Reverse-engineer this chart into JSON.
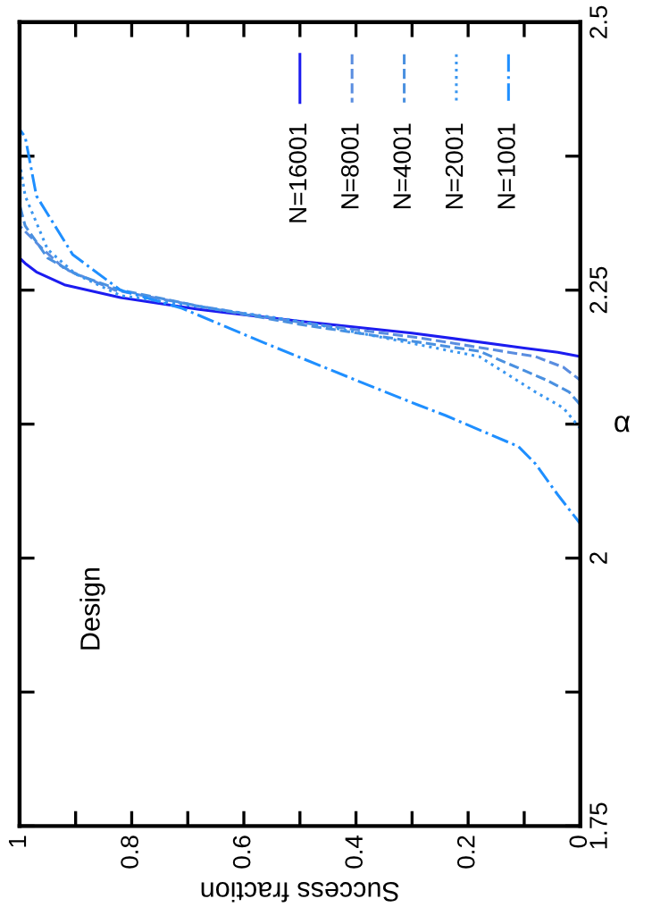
{
  "chart_data": {
    "type": "line",
    "xlabel": "Success fraction",
    "ylabel": "α",
    "annotations": [
      "Design"
    ],
    "ylim": [
      1.75,
      2.5
    ],
    "yticks": [
      1.75,
      {
        "value": 1.875,
        "label": null
      },
      2,
      {
        "value": 2.125,
        "label": null
      },
      2.25,
      {
        "value": 2.375,
        "label": null
      },
      2.5
    ],
    "xlim": [
      1,
      0
    ],
    "xticks": [
      0,
      {
        "value": 0.1,
        "label": null
      },
      0.2,
      {
        "value": 0.3,
        "label": null
      },
      0.4,
      {
        "value": 0.5,
        "label": null
      },
      0.6,
      {
        "value": 0.7,
        "label": null
      },
      0.8,
      {
        "value": 0.9,
        "label": null
      },
      1
    ],
    "legend": "top right",
    "grid": false,
    "marker": "none",
    "series": [
      {
        "name": "N=16001",
        "color": "#1c1cf0",
        "line_style": "solid",
        "values": [
          2.17,
          2.188,
          2.192,
          2.196,
          2.21,
          2.221,
          2.232,
          2.243,
          2.255,
          2.267,
          2.275,
          2.28,
          2.3,
          2.4
        ],
        "x": [
          0,
          0,
          0.04,
          0.1,
          0.3,
          0.5,
          0.68,
          0.82,
          0.92,
          0.97,
          0.99,
          1,
          1,
          1
        ]
      },
      {
        "name": "N=8001",
        "color": "#5a8de0",
        "line_style": "dashed",
        "values": [
          2.15,
          2.166,
          2.178,
          2.188,
          2.205,
          2.22,
          2.235,
          2.25,
          2.27,
          2.289,
          2.31,
          2.4
        ],
        "x": [
          0,
          0,
          0.03,
          0.08,
          0.28,
          0.5,
          0.68,
          0.83,
          0.92,
          0.96,
          1,
          1
        ]
      },
      {
        "name": "N=4001",
        "color": "#4a90e0",
        "line_style": "dashed",
        "values": [
          2.13,
          2.143,
          2.155,
          2.166,
          2.193,
          2.218,
          2.235,
          2.25,
          2.265,
          2.28,
          2.31,
          2.33,
          2.4
        ],
        "x": [
          0,
          0,
          0.02,
          0.06,
          0.18,
          0.5,
          0.68,
          0.82,
          0.9,
          0.95,
          0.99,
          1,
          1
        ]
      },
      {
        "name": "N=2001",
        "color": "#3a96f0",
        "line_style": "dotted",
        "values": [
          2.121,
          2.14,
          2.155,
          2.188,
          2.221,
          2.245,
          2.265,
          2.288,
          2.338,
          2.37,
          2.4
        ],
        "x": [
          0,
          0.03,
          0.08,
          0.18,
          0.5,
          0.82,
          0.9,
          0.95,
          0.99,
          1,
          1
        ]
      },
      {
        "name": "N=1001",
        "color": "#1f8fff",
        "line_style": "dashdot",
        "values": [
          2.0,
          2.032,
          2.059,
          2.088,
          2.104,
          2.133,
          2.143,
          2.166,
          2.2,
          2.233,
          2.25,
          2.283,
          2.338,
          2.393,
          2.4
        ],
        "x": [
          0,
          0,
          0.04,
          0.08,
          0.11,
          0.24,
          0.29,
          0.4,
          0.56,
          0.71,
          0.82,
          0.905,
          0.97,
          0.99,
          1
        ]
      }
    ]
  }
}
